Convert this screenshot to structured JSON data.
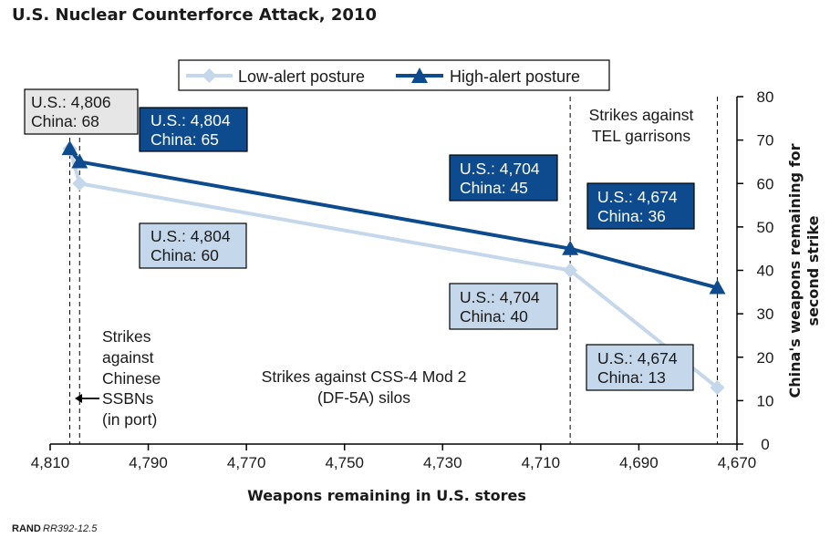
{
  "chart_data": {
    "type": "line",
    "title": "U.S. Nuclear Counterforce Attack, 2010",
    "xlabel": "Weapons remaining in U.S. stores",
    "ylabel_lines": [
      "China's weapons remaining for",
      "second strike"
    ],
    "xlim": [
      4810,
      4670
    ],
    "ylim": [
      0,
      80
    ],
    "x_ticks": [
      4810,
      4790,
      4770,
      4750,
      4730,
      4710,
      4690,
      4670
    ],
    "x_tick_labels": [
      "4,810",
      "4,790",
      "4,770",
      "4,750",
      "4,730",
      "4,710",
      "4,690",
      "4,670"
    ],
    "y_ticks": [
      0,
      10,
      20,
      30,
      40,
      50,
      60,
      70,
      80
    ],
    "y_tick_labels": [
      "0",
      "10",
      "20",
      "30",
      "40",
      "50",
      "60",
      "70",
      "80"
    ],
    "legend_position": "top-center",
    "series": [
      {
        "name": "Low-alert posture",
        "color": "#c5d7ea",
        "marker": "diamond",
        "x": [
          4806,
          4804,
          4704,
          4674
        ],
        "y": [
          68,
          60,
          40,
          13
        ]
      },
      {
        "name": "High-alert posture",
        "color": "#0d4b8e",
        "marker": "triangle",
        "x": [
          4806,
          4804,
          4704,
          4674
        ],
        "y": [
          68,
          65,
          45,
          36
        ]
      }
    ],
    "reference_lines_x": [
      4806,
      4804,
      4704,
      4674
    ],
    "callouts": [
      {
        "style": "gray",
        "lines": [
          "U.S.: 4,806",
          "China: 68"
        ]
      },
      {
        "style": "dark",
        "lines": [
          "U.S.: 4,804",
          "China: 65"
        ]
      },
      {
        "style": "light",
        "lines": [
          "U.S.: 4,804",
          "China: 60"
        ]
      },
      {
        "style": "dark",
        "lines": [
          "U.S.: 4,704",
          "China: 45"
        ]
      },
      {
        "style": "light",
        "lines": [
          "U.S.: 4,704",
          "China: 40"
        ]
      },
      {
        "style": "dark",
        "lines": [
          "U.S.: 4,674",
          "China: 36"
        ]
      },
      {
        "style": "light",
        "lines": [
          "U.S.: 4,674",
          "China: 13"
        ]
      }
    ],
    "annotations": {
      "ssbn": [
        "Strikes",
        "against",
        "Chinese",
        "SSBNs",
        "(in port)"
      ],
      "silos": [
        "Strikes against CSS-4 Mod 2",
        "(DF-5A) silos"
      ],
      "tel": [
        "Strikes against",
        "TEL garrisons"
      ]
    }
  },
  "source": {
    "org": "RAND",
    "id": "RR392-12.5"
  },
  "colors": {
    "dark_blue": "#0d4b8e",
    "light_blue": "#c5d7ea",
    "gray_box": "#e6e6e6"
  }
}
